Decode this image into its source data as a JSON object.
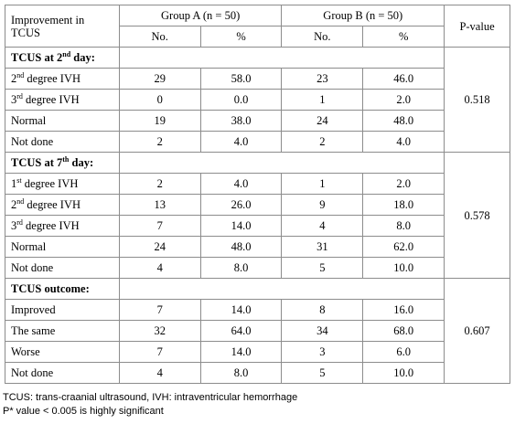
{
  "header": {
    "improvement_label": "Improvement in TCUS",
    "group_a": "Group A (n = 50)",
    "group_b": "Group B (n = 50)",
    "pvalue": "P-value",
    "no": "No.",
    "pct": "%"
  },
  "sections": [
    {
      "title_pre": "TCUS at 2",
      "title_sup": "nd",
      "title_post": " day:",
      "pvalue": "0.518",
      "rows": [
        {
          "pre": "2",
          "sup": "nd",
          "post": " degree IVH",
          "a_no": "29",
          "a_pct": "58.0",
          "b_no": "23",
          "b_pct": "46.0"
        },
        {
          "pre": "3",
          "sup": "rd",
          "post": " degree IVH",
          "a_no": "0",
          "a_pct": "0.0",
          "b_no": "1",
          "b_pct": "2.0"
        },
        {
          "pre": "Normal",
          "sup": "",
          "post": "",
          "a_no": "19",
          "a_pct": "38.0",
          "b_no": "24",
          "b_pct": "48.0"
        },
        {
          "pre": "Not done",
          "sup": "",
          "post": "",
          "a_no": "2",
          "a_pct": "4.0",
          "b_no": "2",
          "b_pct": "4.0"
        }
      ]
    },
    {
      "title_pre": "TCUS at 7",
      "title_sup": "th",
      "title_post": " day:",
      "pvalue": "0.578",
      "rows": [
        {
          "pre": "1",
          "sup": "st",
          "post": " degree IVH",
          "a_no": "2",
          "a_pct": "4.0",
          "b_no": "1",
          "b_pct": "2.0"
        },
        {
          "pre": "2",
          "sup": "nd",
          "post": " degree IVH",
          "a_no": "13",
          "a_pct": "26.0",
          "b_no": "9",
          "b_pct": "18.0"
        },
        {
          "pre": "3",
          "sup": "rd",
          "post": " degree IVH",
          "a_no": "7",
          "a_pct": "14.0",
          "b_no": "4",
          "b_pct": "8.0"
        },
        {
          "pre": "Normal",
          "sup": "",
          "post": "",
          "a_no": "24",
          "a_pct": "48.0",
          "b_no": "31",
          "b_pct": "62.0"
        },
        {
          "pre": "Not done",
          "sup": "",
          "post": "",
          "a_no": "4",
          "a_pct": "8.0",
          "b_no": "5",
          "b_pct": "10.0"
        }
      ]
    },
    {
      "title_pre": "TCUS outcome:",
      "title_sup": "",
      "title_post": "",
      "pvalue": "0.607",
      "rows": [
        {
          "pre": "Improved",
          "sup": "",
          "post": "",
          "a_no": "7",
          "a_pct": "14.0",
          "b_no": "8",
          "b_pct": "16.0"
        },
        {
          "pre": "The same",
          "sup": "",
          "post": "",
          "a_no": "32",
          "a_pct": "64.0",
          "b_no": "34",
          "b_pct": "68.0"
        },
        {
          "pre": "Worse",
          "sup": "",
          "post": "",
          "a_no": "7",
          "a_pct": "14.0",
          "b_no": "3",
          "b_pct": "6.0"
        },
        {
          "pre": "Not done",
          "sup": "",
          "post": "",
          "a_no": "4",
          "a_pct": "8.0",
          "b_no": "5",
          "b_pct": "10.0"
        }
      ]
    }
  ],
  "footnotes": [
    "TCUS: trans-craanial ultrasound, IVH: intraventricular hemorrhage",
    "P* value < 0.005 is highly significant"
  ]
}
